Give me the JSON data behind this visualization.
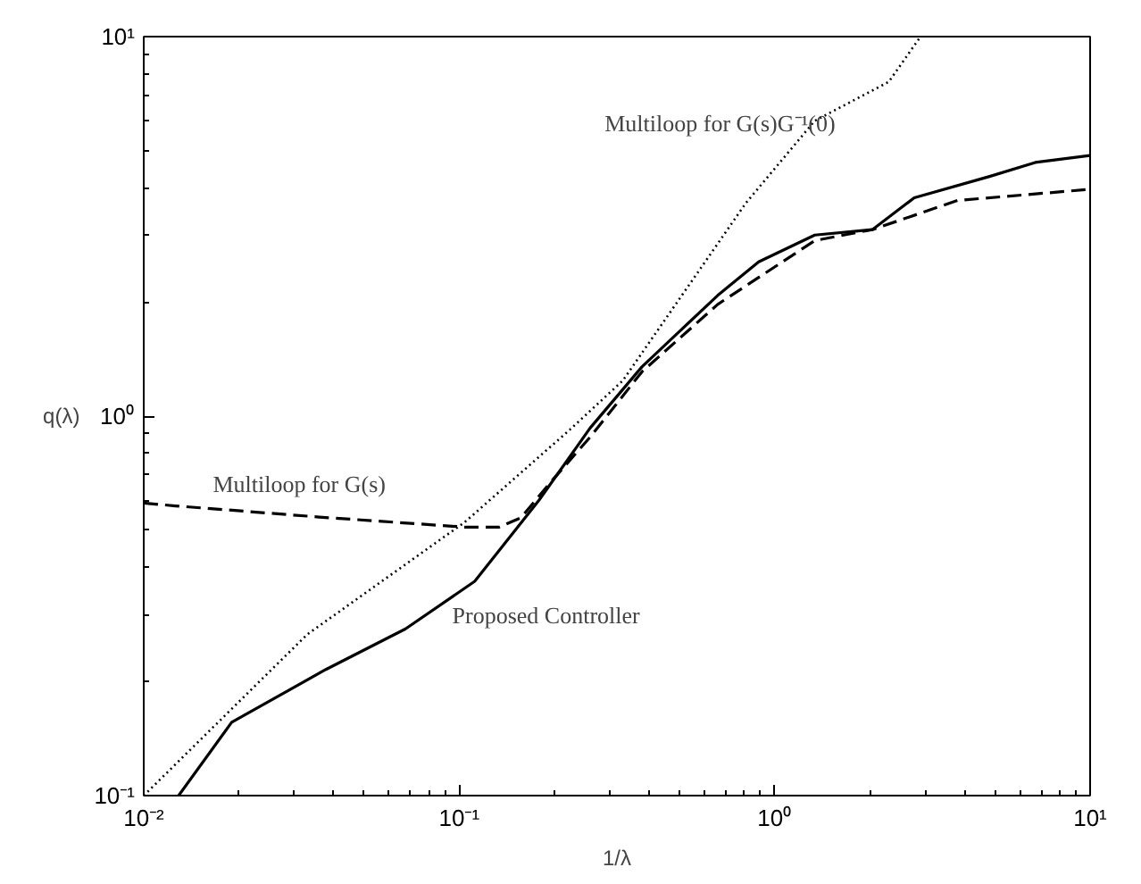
{
  "chart_data": {
    "type": "line",
    "xlabel": "1/λ",
    "ylabel": "q(λ)",
    "log": "xy",
    "grid": false,
    "legend": false,
    "xlim": [
      0.01,
      10
    ],
    "ylim": [
      0.1,
      10
    ],
    "xticks": [
      {
        "value": 0.01,
        "label": "10⁻²"
      },
      {
        "value": 0.1,
        "label": "10⁻¹"
      },
      {
        "value": 1,
        "label": "10⁰"
      },
      {
        "value": 10,
        "label": "10¹"
      }
    ],
    "yticks": [
      {
        "value": 0.1,
        "label": "10⁻¹"
      },
      {
        "value": 1,
        "label": "10⁰"
      },
      {
        "value": 10,
        "label": "10¹"
      }
    ],
    "series": [
      {
        "name": "Proposed Controller",
        "color": "#000000",
        "line_style": "solid",
        "x": [
          0.0129,
          0.019,
          0.0378,
          0.0676,
          0.112,
          0.179,
          0.26,
          0.38,
          0.66,
          0.89,
          1.34,
          2.04,
          2.77,
          4.8,
          6.7,
          10
        ],
        "values": [
          0.1,
          0.156,
          0.215,
          0.275,
          0.367,
          0.6,
          0.93,
          1.35,
          2.08,
          2.55,
          3.0,
          3.1,
          3.76,
          4.28,
          4.66,
          4.86
        ]
      },
      {
        "name": "Multiloop for G(s)",
        "color": "#000000",
        "line_style": "dashed",
        "x": [
          0.01,
          0.0126,
          0.036,
          0.104,
          0.134,
          0.157,
          0.195,
          0.26,
          0.38,
          0.66,
          1.34,
          2.04,
          3.8,
          10
        ],
        "values": [
          0.59,
          0.58,
          0.542,
          0.51,
          0.51,
          0.54,
          0.67,
          0.88,
          1.31,
          1.97,
          2.9,
          3.1,
          3.7,
          3.96
        ]
      },
      {
        "name": "Multiloop for G(s)G⁻¹(0)",
        "color": "#000000",
        "line_style": "dotted",
        "x": [
          0.01,
          0.033,
          0.104,
          0.224,
          0.33,
          0.81,
          1.34,
          2.3,
          2.9
        ],
        "values": [
          0.1,
          0.266,
          0.525,
          0.92,
          1.24,
          3.64,
          6.0,
          7.6,
          10
        ]
      }
    ]
  }
}
